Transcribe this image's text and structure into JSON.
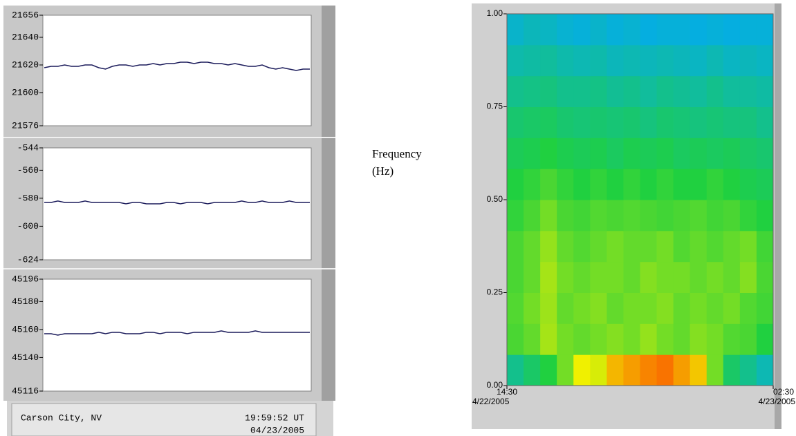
{
  "chart_data": [
    {
      "type": "line",
      "color": "#1a1a5a",
      "ylim": [
        21576,
        21656
      ],
      "yticks": [
        21576,
        21600,
        21620,
        21640,
        21656
      ],
      "values": [
        21618,
        21619,
        21619,
        21620,
        21619,
        21619,
        21620,
        21620,
        21618,
        21617,
        21619,
        21620,
        21620,
        21619,
        21620,
        21620,
        21621,
        21620,
        21621,
        21621,
        21622,
        21622,
        21621,
        21622,
        21622,
        21621,
        21621,
        21620,
        21621,
        21620,
        21619,
        21619,
        21620,
        21618,
        21617,
        21618,
        21617,
        21616,
        21617,
        21617
      ]
    },
    {
      "type": "line",
      "color": "#1a1a5a",
      "ylim": [
        -624,
        -544
      ],
      "yticks": [
        -624,
        -600,
        -580,
        -560,
        -544
      ],
      "values": [
        -583,
        -583,
        -582,
        -583,
        -583,
        -583,
        -582,
        -583,
        -583,
        -583,
        -583,
        -583,
        -584,
        -583,
        -583,
        -584,
        -584,
        -584,
        -583,
        -583,
        -584,
        -583,
        -583,
        -583,
        -584,
        -583,
        -583,
        -583,
        -583,
        -582,
        -583,
        -583,
        -582,
        -583,
        -583,
        -583,
        -582,
        -583,
        -583,
        -583
      ]
    },
    {
      "type": "line",
      "color": "#1a1a5a",
      "ylim": [
        45116,
        45196
      ],
      "yticks": [
        45116,
        45140,
        45160,
        45180,
        45196
      ],
      "values": [
        45157,
        45157,
        45156,
        45157,
        45157,
        45157,
        45157,
        45157,
        45158,
        45157,
        45158,
        45158,
        45157,
        45157,
        45157,
        45158,
        45158,
        45157,
        45158,
        45158,
        45158,
        45157,
        45158,
        45158,
        45158,
        45158,
        45159,
        45158,
        45158,
        45158,
        45158,
        45159,
        45158,
        45158,
        45158,
        45158,
        45158,
        45158,
        45158,
        45158
      ]
    },
    {
      "type": "heatmap",
      "ylabel": "Frequency (Hz)",
      "ylim": [
        0,
        1
      ],
      "yticks": [
        {
          "value": 0,
          "label": "0.00"
        },
        {
          "value": 0.25,
          "label": "0.25"
        },
        {
          "value": 0.5,
          "label": "0.50"
        },
        {
          "value": 0.75,
          "label": "0.75"
        },
        {
          "value": 1,
          "label": "1.00"
        }
      ],
      "xtick_labels": [
        {
          "time": "14:30",
          "date": "4/22/2005"
        },
        {
          "time": "02:30",
          "date": "4/23/2005"
        }
      ],
      "zlim": [
        0,
        1
      ],
      "colors": [
        "#0010b0",
        "#00a8ff",
        "#20d040",
        "#f0f000",
        "#ff2000"
      ],
      "z": [
        [
          0.4,
          0.45,
          0.5,
          0.6,
          0.75,
          0.72,
          0.82,
          0.85,
          0.88,
          0.9,
          0.85,
          0.8,
          0.6,
          0.45,
          0.4,
          0.35
        ],
        [
          0.55,
          0.58,
          0.66,
          0.6,
          0.58,
          0.6,
          0.62,
          0.6,
          0.64,
          0.6,
          0.58,
          0.62,
          0.6,
          0.56,
          0.55,
          0.5
        ],
        [
          0.56,
          0.6,
          0.65,
          0.58,
          0.6,
          0.62,
          0.58,
          0.6,
          0.6,
          0.62,
          0.58,
          0.6,
          0.58,
          0.6,
          0.56,
          0.54
        ],
        [
          0.55,
          0.58,
          0.66,
          0.6,
          0.58,
          0.6,
          0.6,
          0.58,
          0.62,
          0.6,
          0.6,
          0.58,
          0.6,
          0.58,
          0.62,
          0.55
        ],
        [
          0.55,
          0.58,
          0.64,
          0.58,
          0.56,
          0.58,
          0.6,
          0.58,
          0.58,
          0.6,
          0.56,
          0.58,
          0.56,
          0.58,
          0.6,
          0.54
        ],
        [
          0.52,
          0.55,
          0.6,
          0.55,
          0.54,
          0.56,
          0.55,
          0.56,
          0.55,
          0.54,
          0.55,
          0.56,
          0.54,
          0.55,
          0.52,
          0.5
        ],
        [
          0.5,
          0.52,
          0.55,
          0.52,
          0.5,
          0.52,
          0.5,
          0.52,
          0.5,
          0.52,
          0.5,
          0.5,
          0.52,
          0.5,
          0.48,
          0.47
        ],
        [
          0.47,
          0.48,
          0.5,
          0.48,
          0.47,
          0.48,
          0.46,
          0.48,
          0.47,
          0.48,
          0.46,
          0.47,
          0.46,
          0.47,
          0.45,
          0.44
        ],
        [
          0.44,
          0.45,
          0.46,
          0.44,
          0.43,
          0.44,
          0.43,
          0.44,
          0.42,
          0.44,
          0.43,
          0.42,
          0.43,
          0.42,
          0.42,
          0.4
        ],
        [
          0.4,
          0.41,
          0.42,
          0.4,
          0.4,
          0.41,
          0.39,
          0.4,
          0.38,
          0.4,
          0.39,
          0.38,
          0.4,
          0.38,
          0.38,
          0.37
        ],
        [
          0.36,
          0.37,
          0.38,
          0.36,
          0.35,
          0.36,
          0.34,
          0.35,
          0.34,
          0.35,
          0.34,
          0.33,
          0.35,
          0.33,
          0.34,
          0.33
        ],
        [
          0.32,
          0.34,
          0.33,
          0.31,
          0.3,
          0.32,
          0.3,
          0.31,
          0.29,
          0.3,
          0.3,
          0.29,
          0.3,
          0.29,
          0.3,
          0.3
        ]
      ]
    }
  ],
  "status": {
    "location": "Carson City, NV",
    "time": "19:59:52 UT",
    "date": "04/23/2005"
  }
}
